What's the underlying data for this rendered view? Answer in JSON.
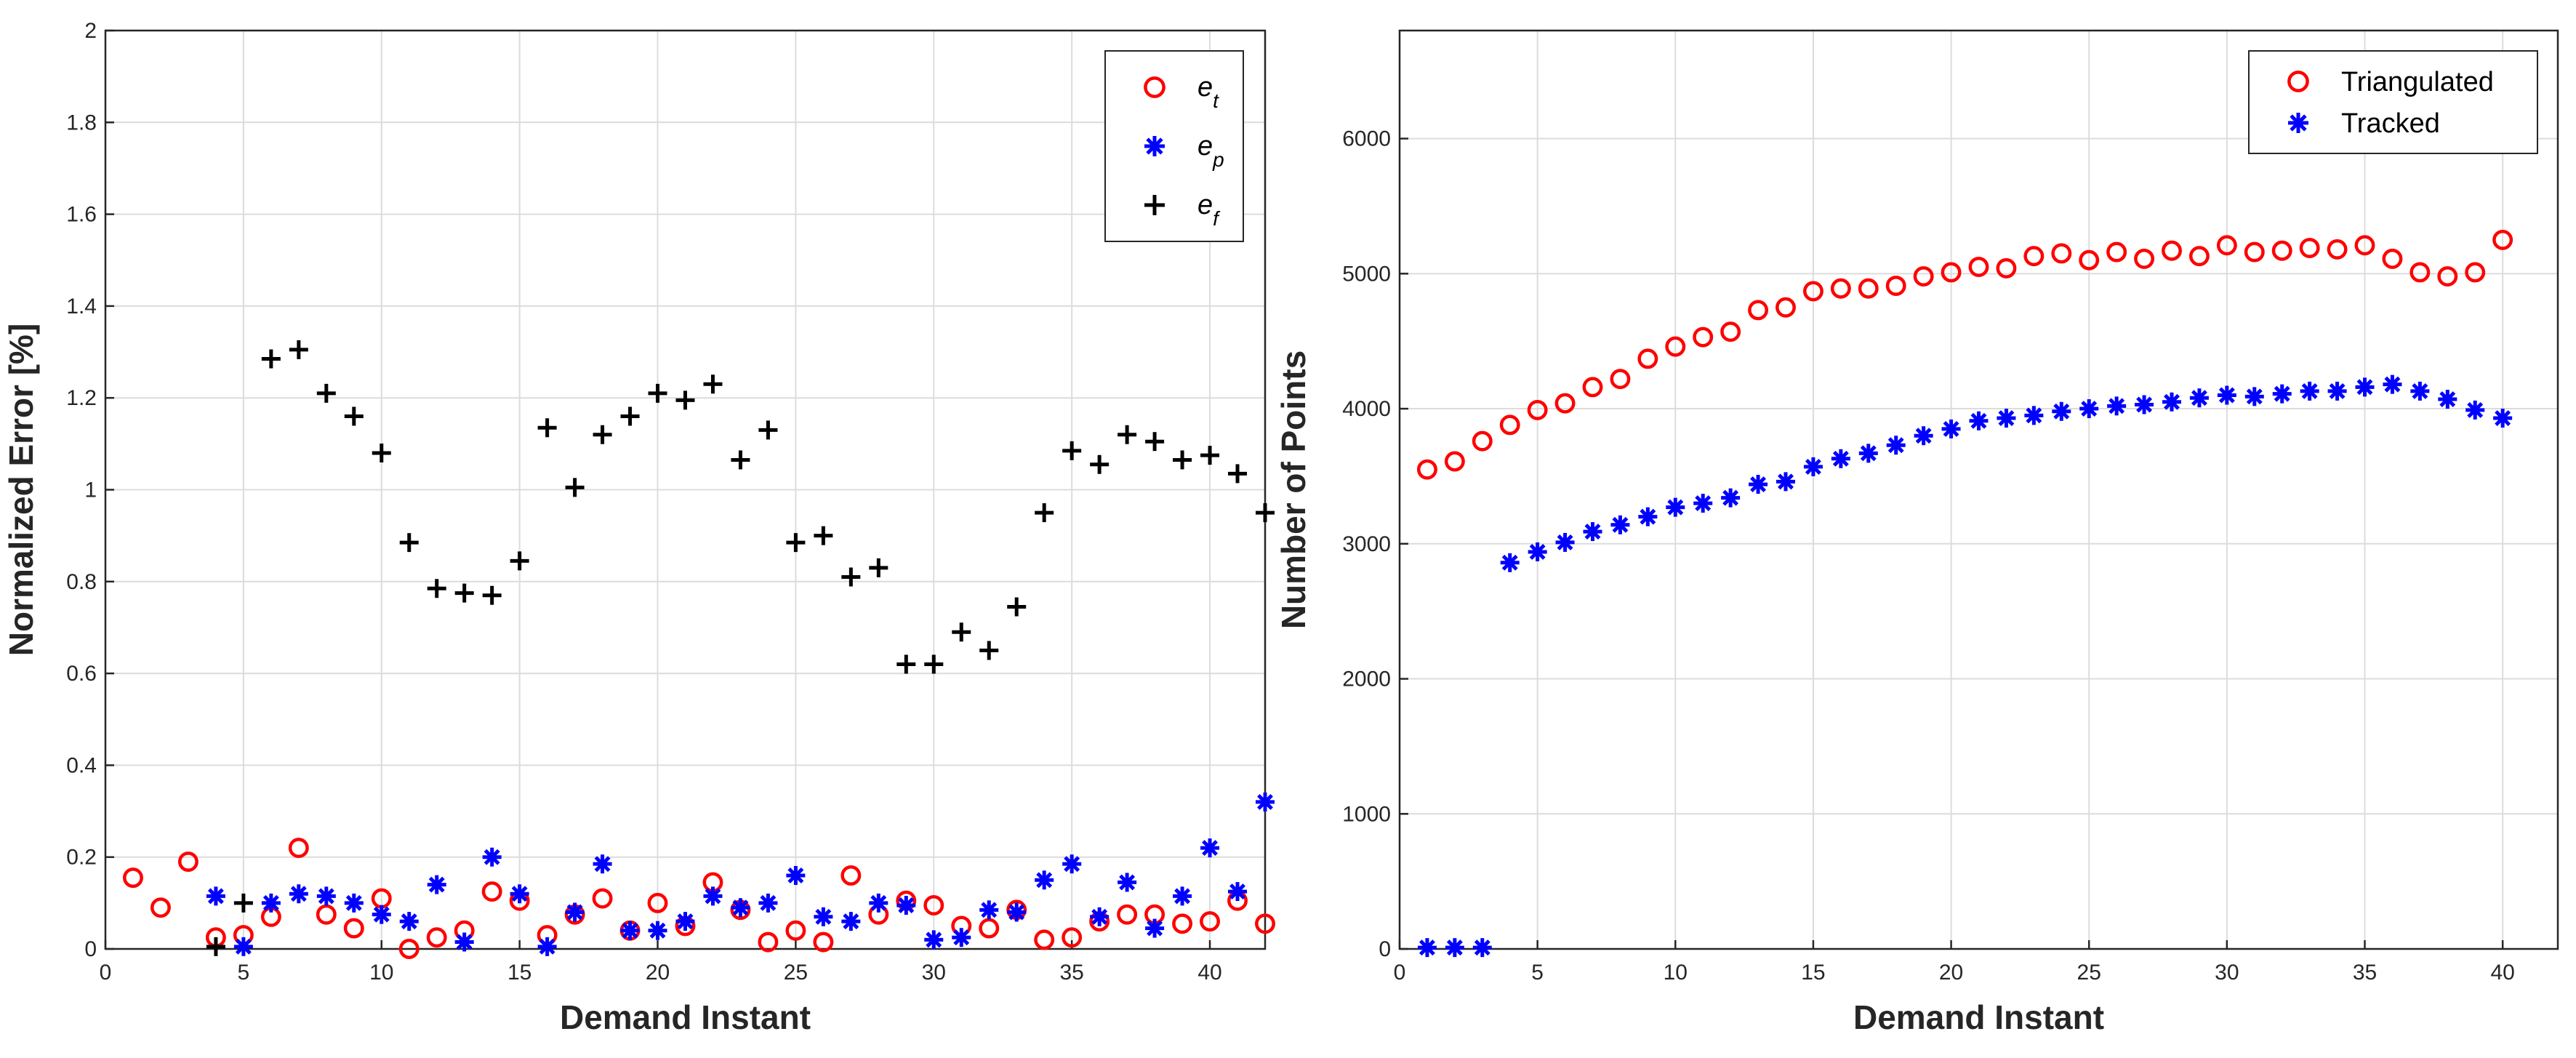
{
  "chart_data": [
    {
      "type": "scatter",
      "xlabel": "Demand Instant",
      "ylabel": "Normalized Error [%]",
      "xlim": [
        0,
        42
      ],
      "ylim": [
        0,
        2
      ],
      "xticks": [
        0,
        5,
        10,
        15,
        20,
        25,
        30,
        35,
        40
      ],
      "yticks": [
        0,
        0.2,
        0.4,
        0.6,
        0.8,
        1,
        1.2,
        1.4,
        1.6,
        1.8,
        2
      ],
      "grid": true,
      "legend": "top-right",
      "series": [
        {
          "name": "e_t",
          "base": "e",
          "sub": "t",
          "marker": "circle",
          "color": "#ff0000",
          "x": [
            1,
            2,
            3,
            4,
            5,
            6,
            7,
            8,
            9,
            10,
            11,
            12,
            13,
            14,
            15,
            16,
            17,
            18,
            19,
            20,
            21,
            22,
            23,
            24,
            25,
            26,
            27,
            28,
            29,
            30,
            31,
            32,
            33,
            34,
            35,
            36,
            37,
            38,
            39,
            40,
            41,
            42
          ],
          "y": [
            0.155,
            0.09,
            0.19,
            0.025,
            0.03,
            0.07,
            0.22,
            0.075,
            0.045,
            0.11,
            0.0,
            0.025,
            0.04,
            0.125,
            0.105,
            0.03,
            0.075,
            0.11,
            0.04,
            0.1,
            0.05,
            0.145,
            0.085,
            0.015,
            0.04,
            0.015,
            0.16,
            0.075,
            0.105,
            0.095,
            0.05,
            0.045,
            0.085,
            0.02,
            0.025,
            0.06,
            0.075,
            0.075,
            0.055,
            0.06,
            0.105,
            0.055
          ]
        },
        {
          "name": "e_p",
          "base": "e",
          "sub": "p",
          "marker": "star",
          "color": "#0000ff",
          "x": [
            4,
            5,
            6,
            7,
            8,
            9,
            10,
            11,
            12,
            13,
            14,
            15,
            16,
            17,
            18,
            19,
            20,
            21,
            22,
            23,
            24,
            25,
            26,
            27,
            28,
            29,
            30,
            31,
            32,
            33,
            34,
            35,
            36,
            37,
            38,
            39,
            40,
            41,
            42
          ],
          "y": [
            0.115,
            0.005,
            0.1,
            0.12,
            0.115,
            0.1,
            0.075,
            0.06,
            0.14,
            0.015,
            0.2,
            0.12,
            0.005,
            0.08,
            0.185,
            0.04,
            0.04,
            0.06,
            0.115,
            0.09,
            0.1,
            0.16,
            0.07,
            0.06,
            0.1,
            0.095,
            0.02,
            0.025,
            0.085,
            0.08,
            0.15,
            0.185,
            0.07,
            0.145,
            0.045,
            0.115,
            0.22,
            0.125,
            0.32
          ]
        },
        {
          "name": "e_f",
          "base": "e",
          "sub": "f",
          "marker": "plus",
          "color": "#000000",
          "x": [
            4,
            5,
            6,
            7,
            8,
            9,
            10,
            11,
            12,
            13,
            14,
            15,
            16,
            17,
            18,
            19,
            20,
            21,
            22,
            23,
            24,
            25,
            26,
            27,
            28,
            29,
            30,
            31,
            32,
            33,
            34,
            35,
            36,
            37,
            38,
            39,
            40,
            41,
            42
          ],
          "y": [
            0.005,
            0.1,
            1.285,
            1.305,
            1.21,
            1.16,
            1.08,
            0.885,
            0.785,
            0.775,
            0.77,
            0.845,
            1.135,
            1.005,
            1.12,
            1.16,
            1.21,
            1.195,
            1.23,
            1.065,
            1.13,
            0.885,
            0.9,
            0.81,
            0.83,
            0.62,
            0.62,
            0.69,
            0.65,
            0.745,
            0.95,
            1.085,
            1.055,
            1.12,
            1.105,
            1.065,
            1.075,
            1.035,
            0.95
          ]
        }
      ]
    },
    {
      "type": "scatter",
      "xlabel": "Demand Instant",
      "ylabel": "Number of Points",
      "xlim": [
        0,
        42
      ],
      "ylim": [
        0,
        6800
      ],
      "xticks": [
        0,
        5,
        10,
        15,
        20,
        25,
        30,
        35,
        40
      ],
      "yticks": [
        0,
        1000,
        2000,
        3000,
        4000,
        5000,
        6000
      ],
      "grid": true,
      "legend": "top-right",
      "series": [
        {
          "name": "Triangulated",
          "marker": "circle",
          "color": "#ff0000",
          "x": [
            1,
            2,
            3,
            4,
            5,
            6,
            7,
            8,
            9,
            10,
            11,
            12,
            13,
            14,
            15,
            16,
            17,
            18,
            19,
            20,
            21,
            22,
            23,
            24,
            25,
            26,
            27,
            28,
            29,
            30,
            31,
            32,
            33,
            34,
            35,
            36,
            37,
            38,
            39,
            40
          ],
          "y": [
            3550,
            3610,
            3760,
            3880,
            3990,
            4040,
            4160,
            4220,
            4370,
            4460,
            4530,
            4570,
            4730,
            4750,
            4870,
            4890,
            4890,
            4910,
            4980,
            5010,
            5050,
            5040,
            5130,
            5150,
            5100,
            5160,
            5110,
            5170,
            5130,
            5210,
            5160,
            5170,
            5190,
            5180,
            5210,
            5110,
            5010,
            4980,
            5010,
            5250
          ]
        },
        {
          "name": "Tracked",
          "marker": "star",
          "color": "#0000ff",
          "x": [
            1,
            2,
            3,
            4,
            5,
            6,
            7,
            8,
            9,
            10,
            11,
            12,
            13,
            14,
            15,
            16,
            17,
            18,
            19,
            20,
            21,
            22,
            23,
            24,
            25,
            26,
            27,
            28,
            29,
            30,
            31,
            32,
            33,
            34,
            35,
            36,
            37,
            38,
            39,
            40
          ],
          "y": [
            10,
            10,
            10,
            2860,
            2940,
            3010,
            3090,
            3140,
            3200,
            3270,
            3300,
            3340,
            3440,
            3460,
            3570,
            3630,
            3670,
            3730,
            3800,
            3850,
            3910,
            3930,
            3950,
            3980,
            4000,
            4020,
            4030,
            4050,
            4080,
            4100,
            4090,
            4110,
            4130,
            4130,
            4160,
            4180,
            4130,
            4070,
            3990,
            3930
          ]
        }
      ]
    }
  ]
}
